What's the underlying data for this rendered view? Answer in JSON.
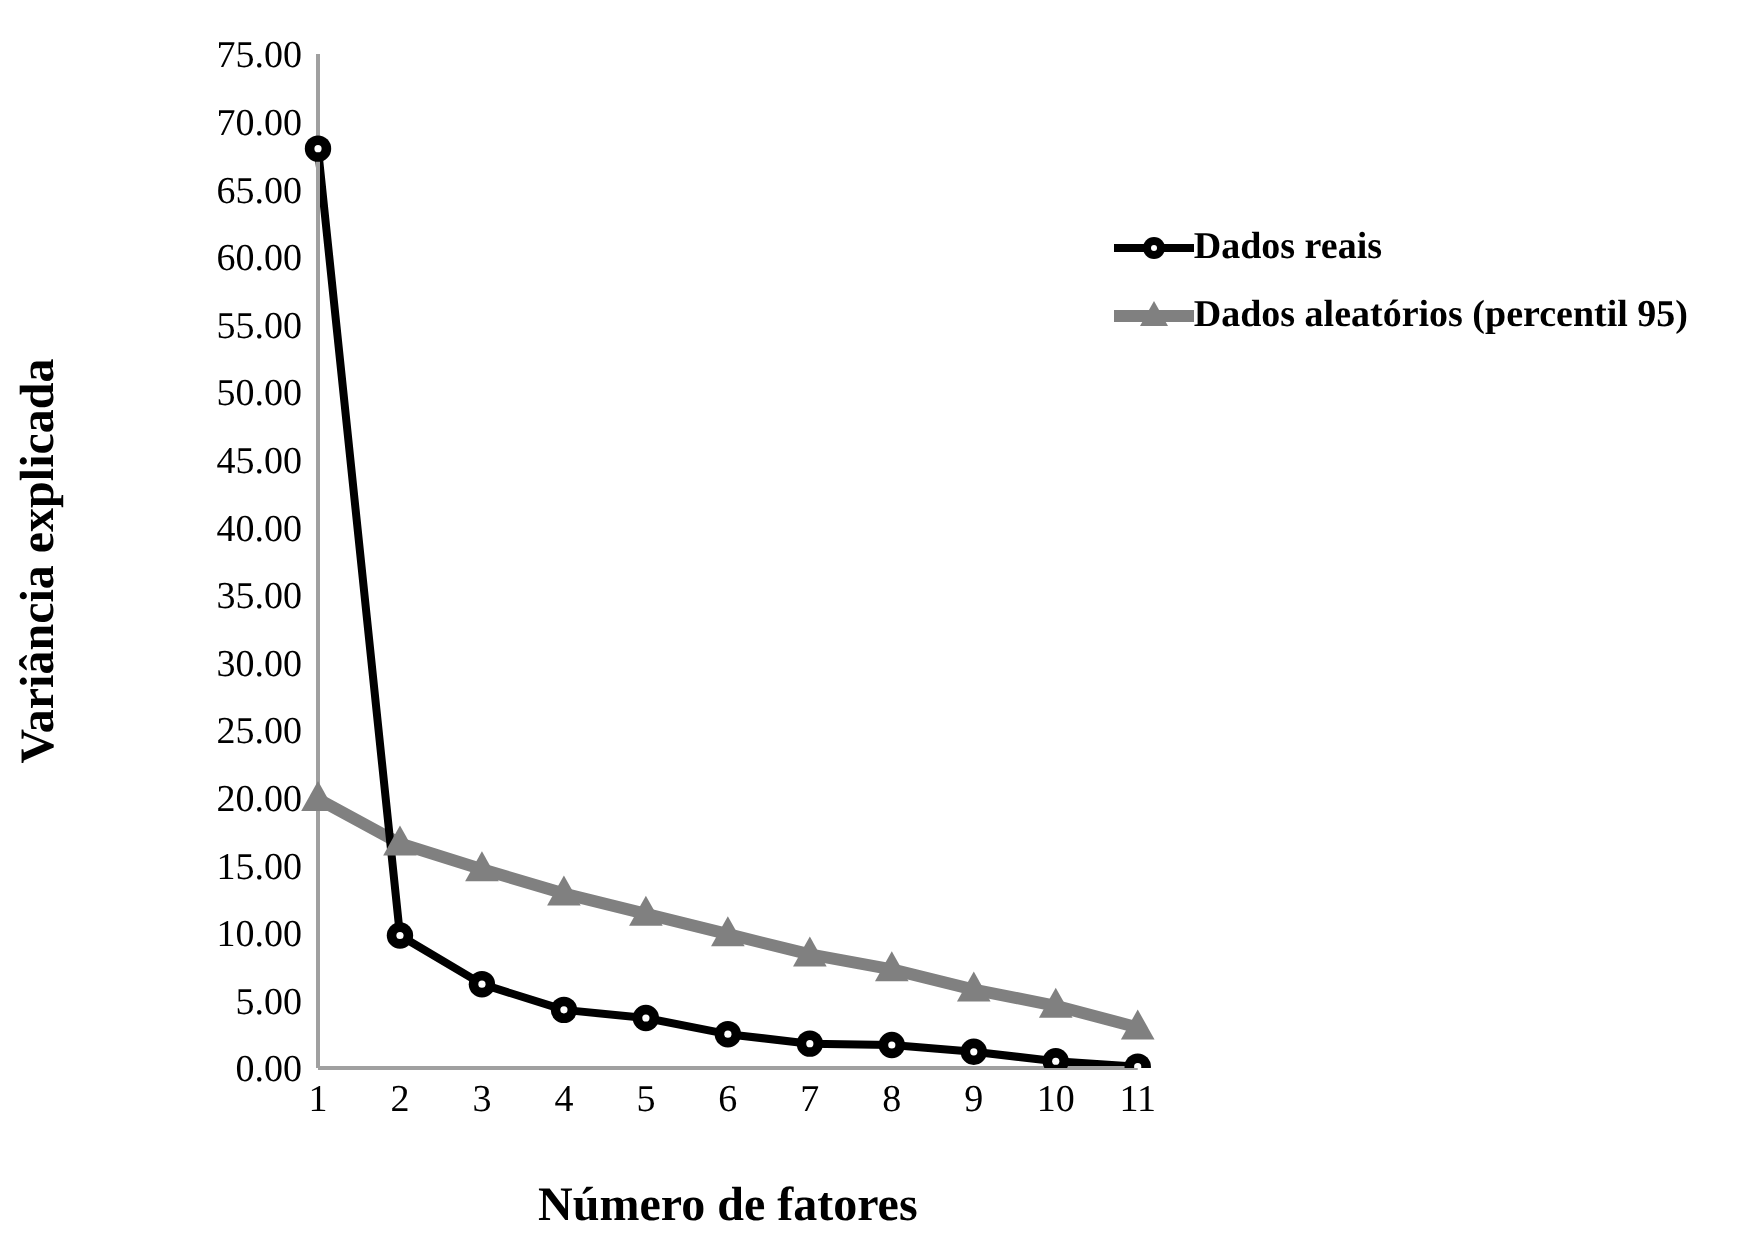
{
  "chart_data": {
    "type": "line",
    "xlabel": "Número de fatores",
    "ylabel": "Variância explicada",
    "categories": [
      "1",
      "2",
      "3",
      "4",
      "5",
      "6",
      "7",
      "8",
      "9",
      "10",
      "11"
    ],
    "series": [
      {
        "name": "Dados reais",
        "color": "#000000",
        "marker": "circle",
        "values": [
          68.0,
          9.8,
          6.2,
          4.3,
          3.7,
          2.5,
          1.8,
          1.7,
          1.2,
          0.5,
          0.1
        ]
      },
      {
        "name": "Dados aleatórios (percentil 95)",
        "color": "#808080",
        "marker": "triangle",
        "values": [
          19.9,
          16.6,
          14.7,
          12.9,
          11.4,
          9.9,
          8.4,
          7.3,
          5.8,
          4.6,
          3.0
        ]
      }
    ],
    "ylim": [
      0,
      75
    ],
    "yticks": [
      {
        "value": 0,
        "label": "0.00"
      },
      {
        "value": 5,
        "label": "5.00"
      },
      {
        "value": 10,
        "label": "10.00"
      },
      {
        "value": 15,
        "label": "15.00"
      },
      {
        "value": 20,
        "label": "20.00"
      },
      {
        "value": 25,
        "label": "25.00"
      },
      {
        "value": 30,
        "label": "30.00"
      },
      {
        "value": 35,
        "label": "35.00"
      },
      {
        "value": 40,
        "label": "40.00"
      },
      {
        "value": 45,
        "label": "45.00"
      },
      {
        "value": 50,
        "label": "50.00"
      },
      {
        "value": 55,
        "label": "55.00"
      },
      {
        "value": 60,
        "label": "60.00"
      },
      {
        "value": 65,
        "label": "65.00"
      },
      {
        "value": 70,
        "label": "70.00"
      },
      {
        "value": 75,
        "label": "75.00"
      }
    ],
    "legend": "top right",
    "grid": false
  }
}
